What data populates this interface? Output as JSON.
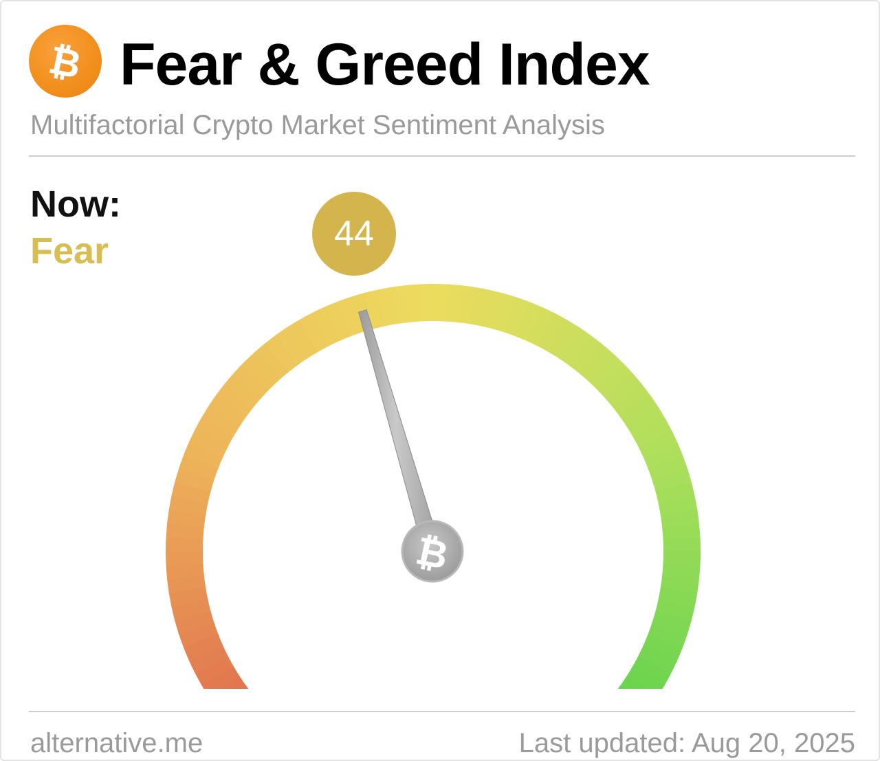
{
  "header": {
    "logo_icon": "bitcoin-logo-icon",
    "title": "Fear & Greed Index",
    "subtitle": "Multifactorial Crypto Market Sentiment Analysis"
  },
  "current": {
    "label": "Now:",
    "classification": "Fear",
    "value": "44",
    "value_color": "#d4b44c",
    "classification_color": "#d8bd52"
  },
  "gauge": {
    "min": 0,
    "max": 100,
    "value": 44,
    "needle_hub_icon": "bitcoin-icon",
    "colors": {
      "extreme_fear": "#df6b4d",
      "fear": "#eeb45a",
      "neutral": "#ecdc5e",
      "greed": "#aedf5c",
      "extreme_greed": "#5fd24c"
    }
  },
  "footer": {
    "source": "alternative.me",
    "last_updated": "Last updated: Aug 20, 2025"
  }
}
